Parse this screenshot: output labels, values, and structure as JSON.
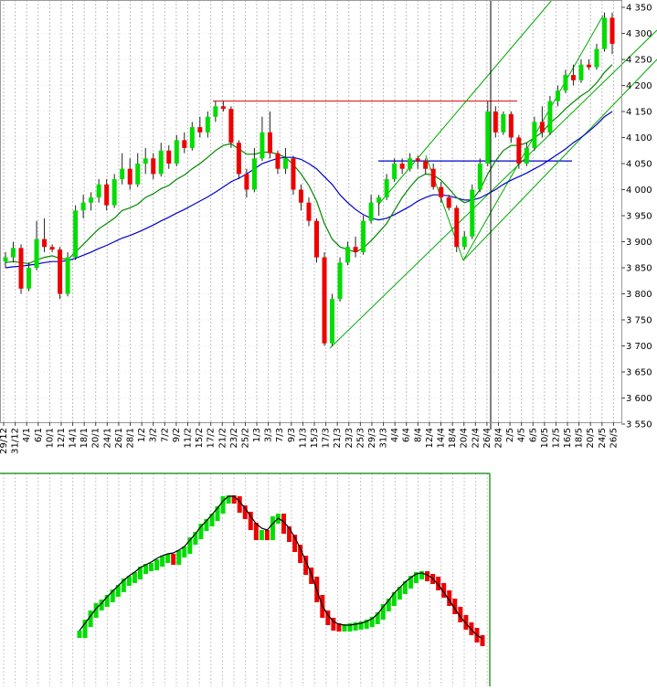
{
  "chart_data": [
    {
      "type": "candlestick",
      "y_ticks": [
        "3 550",
        "3 600",
        "3 650",
        "3 700",
        "3 750",
        "3 800",
        "3 850",
        "3 900",
        "3 950",
        "4 000",
        "4 050",
        "4 100",
        "4 150",
        "4 200",
        "4 250",
        "4 300",
        "4 350"
      ],
      "ylim": [
        3550,
        4360
      ],
      "x_ticks": [
        "29/12",
        "31/12",
        "4/1",
        "6/1",
        "10/1",
        "12/1",
        "14/1",
        "18/1",
        "20/1",
        "24/1",
        "26/1",
        "28/1",
        "1/2",
        "3/2",
        "7/2",
        "9/2",
        "11/2",
        "15/2",
        "17/2",
        "21/2",
        "23/2",
        "25/2",
        "1/3",
        "3/3",
        "7/3",
        "9/3",
        "11/3",
        "15/3",
        "17/3",
        "21/3",
        "23/3",
        "25/3",
        "29/3",
        "31/3",
        "4/4",
        "6/4",
        "8/4",
        "12/4",
        "14/4",
        "18/4",
        "20/4",
        "22/4",
        "26/4",
        "28/4",
        "2/5",
        "4/5",
        "6/5",
        "10/5",
        "12/5",
        "16/5",
        "18/5",
        "20/5",
        "24/5",
        "26/5"
      ],
      "grid": true,
      "colors": {
        "up": "#00dd00",
        "down": "#ee0000",
        "ma_short": "#008800",
        "ma_long": "#0000cc",
        "channel": "#00aa00",
        "resistance": "#dd0000",
        "support": "#0000cc",
        "cursor": "#000000"
      },
      "candles": [
        [
          3862,
          3880,
          3850,
          3870
        ],
        [
          3870,
          3900,
          3860,
          3888
        ],
        [
          3888,
          3895,
          3800,
          3810
        ],
        [
          3810,
          3860,
          3805,
          3850
        ],
        [
          3850,
          3940,
          3845,
          3905
        ],
        [
          3905,
          3945,
          3880,
          3890
        ],
        [
          3890,
          3895,
          3880,
          3885
        ],
        [
          3885,
          3890,
          3790,
          3800
        ],
        [
          3800,
          3880,
          3795,
          3870
        ],
        [
          3870,
          3970,
          3865,
          3960
        ],
        [
          3960,
          3990,
          3945,
          3975
        ],
        [
          3975,
          3995,
          3960,
          3985
        ],
        [
          3985,
          4020,
          3975,
          4010
        ],
        [
          4010,
          4020,
          3960,
          3970
        ],
        [
          3970,
          4030,
          3965,
          4020
        ],
        [
          4020,
          4070,
          4010,
          4040
        ],
        [
          4040,
          4060,
          4000,
          4010
        ],
        [
          4010,
          4070,
          4005,
          4050
        ],
        [
          4050,
          4080,
          4030,
          4060
        ],
        [
          4060,
          4070,
          4020,
          4030
        ],
        [
          4030,
          4090,
          4025,
          4075
        ],
        [
          4075,
          4085,
          4040,
          4050
        ],
        [
          4050,
          4105,
          4045,
          4095
        ],
        [
          4095,
          4110,
          4070,
          4080
        ],
        [
          4080,
          4130,
          4075,
          4120
        ],
        [
          4120,
          4140,
          4100,
          4110
        ],
        [
          4110,
          4150,
          4100,
          4140
        ],
        [
          4140,
          4170,
          4130,
          4160
        ],
        [
          4160,
          4170,
          4150,
          4155
        ],
        [
          4155,
          4160,
          4080,
          4090
        ],
        [
          4090,
          4095,
          4020,
          4030
        ],
        [
          4030,
          4040,
          3985,
          4000
        ],
        [
          4000,
          4080,
          3995,
          4060
        ],
        [
          4060,
          4140,
          4055,
          4110
        ],
        [
          4110,
          4150,
          4060,
          4070
        ],
        [
          4070,
          4075,
          4030,
          4040
        ],
        [
          4040,
          4080,
          4030,
          4060
        ],
        [
          4060,
          4065,
          3990,
          4000
        ],
        [
          4000,
          4010,
          3960,
          3975
        ],
        [
          3975,
          3985,
          3930,
          3940
        ],
        [
          3940,
          3945,
          3860,
          3870
        ],
        [
          3870,
          3880,
          3700,
          3705
        ],
        [
          3705,
          3800,
          3700,
          3790
        ],
        [
          3790,
          3870,
          3785,
          3860
        ],
        [
          3860,
          3900,
          3855,
          3890
        ],
        [
          3890,
          3910,
          3870,
          3880
        ],
        [
          3880,
          3950,
          3875,
          3940
        ],
        [
          3940,
          3990,
          3935,
          3975
        ],
        [
          3975,
          3990,
          3950,
          3985
        ],
        [
          3985,
          4030,
          3980,
          4020
        ],
        [
          4020,
          4060,
          4015,
          4050
        ],
        [
          4050,
          4060,
          4030,
          4040
        ],
        [
          4040,
          4070,
          4035,
          4060
        ],
        [
          4060,
          4065,
          4040,
          4055
        ],
        [
          4055,
          4060,
          4030,
          4040
        ],
        [
          4040,
          4050,
          4000,
          4005
        ],
        [
          4005,
          4015,
          3975,
          3985
        ],
        [
          3985,
          3990,
          3960,
          3965
        ],
        [
          3965,
          3970,
          3880,
          3890
        ],
        [
          3890,
          3920,
          3885,
          3910
        ],
        [
          3910,
          4010,
          3905,
          4000
        ],
        [
          4000,
          4060,
          3995,
          4050
        ],
        [
          4050,
          4170,
          4045,
          4150
        ],
        [
          4150,
          4160,
          4100,
          4110
        ],
        [
          4110,
          4150,
          4105,
          4145
        ],
        [
          4145,
          4150,
          4090,
          4100
        ],
        [
          4100,
          4105,
          4040,
          4050
        ],
        [
          4050,
          4090,
          4045,
          4080
        ],
        [
          4080,
          4140,
          4075,
          4130
        ],
        [
          4130,
          4160,
          4100,
          4110
        ],
        [
          4110,
          4180,
          4105,
          4170
        ],
        [
          4170,
          4200,
          4160,
          4190
        ],
        [
          4190,
          4230,
          4185,
          4220
        ],
        [
          4220,
          4240,
          4200,
          4210
        ],
        [
          4210,
          4250,
          4205,
          4240
        ],
        [
          4240,
          4250,
          4230,
          4235
        ],
        [
          4235,
          4280,
          4230,
          4270
        ],
        [
          4270,
          4340,
          4265,
          4330
        ],
        [
          4330,
          4340,
          4260,
          4280
        ]
      ],
      "ma_short": [
        3860,
        3862,
        3860,
        3858,
        3865,
        3870,
        3873,
        3868,
        3866,
        3880,
        3895,
        3910,
        3925,
        3935,
        3945,
        3960,
        3965,
        3972,
        3985,
        3992,
        4002,
        4008,
        4020,
        4028,
        4040,
        4050,
        4062,
        4075,
        4085,
        4088,
        4078,
        4068,
        4068,
        4072,
        4072,
        4068,
        4062,
        4048,
        4030,
        4008,
        3978,
        3935,
        3905,
        3890,
        3885,
        3880,
        3888,
        3902,
        3918,
        3935,
        3960,
        3985,
        4005,
        4022,
        4030,
        4028,
        4018,
        4002,
        3985,
        3975,
        3980,
        4000,
        4030,
        4055,
        4075,
        4085,
        4085,
        4090,
        4100,
        4110,
        4128,
        4140,
        4155,
        4168,
        4180,
        4190,
        4205,
        4225,
        4240
      ],
      "ma_long": [
        3850,
        3852,
        3853,
        3855,
        3857,
        3860,
        3862,
        3862,
        3864,
        3868,
        3874,
        3880,
        3887,
        3893,
        3900,
        3907,
        3912,
        3918,
        3925,
        3932,
        3940,
        3947,
        3955,
        3962,
        3970,
        3978,
        3986,
        3995,
        4005,
        4015,
        4022,
        4030,
        4040,
        4050,
        4055,
        4060,
        4062,
        4062,
        4058,
        4050,
        4040,
        4025,
        4010,
        3990,
        3975,
        3962,
        3952,
        3945,
        3942,
        3945,
        3952,
        3960,
        3968,
        3978,
        3985,
        3990,
        3990,
        3988,
        3984,
        3980,
        3980,
        3984,
        3992,
        4000,
        4010,
        4018,
        4025,
        4032,
        4040,
        4048,
        4058,
        4068,
        4078,
        4090,
        4100,
        4112,
        4125,
        4140,
        4150
      ],
      "resistance_level": 4170,
      "support_level": 4055
    },
    {
      "type": "bar",
      "indicator": "oscillator",
      "values": [
        58,
        70,
        80,
        88,
        92,
        97,
        103,
        108,
        115,
        118,
        122,
        128,
        131,
        132,
        136,
        140,
        142,
        138,
        146,
        150,
        160,
        166,
        175,
        180,
        186,
        194,
        205,
        206,
        205,
        195,
        188,
        176,
        165,
        168,
        165,
        183,
        186,
        172,
        163,
        152,
        140,
        127,
        117,
        97,
        80,
        72,
        66,
        65,
        65,
        66,
        67,
        68,
        70,
        73,
        78,
        87,
        93,
        100,
        106,
        112,
        118,
        122,
        123,
        120,
        117,
        110,
        102,
        93,
        84,
        75,
        67,
        61,
        53,
        49
      ],
      "line": [
        58,
        66,
        74,
        82,
        88,
        95,
        101,
        107,
        113,
        118,
        122,
        127,
        130,
        133,
        137,
        140,
        142,
        143,
        146,
        150,
        157,
        164,
        172,
        178,
        185,
        192,
        200,
        205,
        205,
        199,
        192,
        183,
        175,
        170,
        168,
        175,
        181,
        177,
        170,
        160,
        148,
        134,
        120,
        102,
        85,
        75,
        68,
        65,
        64,
        64,
        65,
        66,
        68,
        71,
        76,
        84,
        91,
        99,
        105,
        111,
        116,
        120,
        121,
        119,
        115,
        108,
        100,
        91,
        82,
        73,
        66,
        59,
        53,
        49
      ]
    }
  ]
}
